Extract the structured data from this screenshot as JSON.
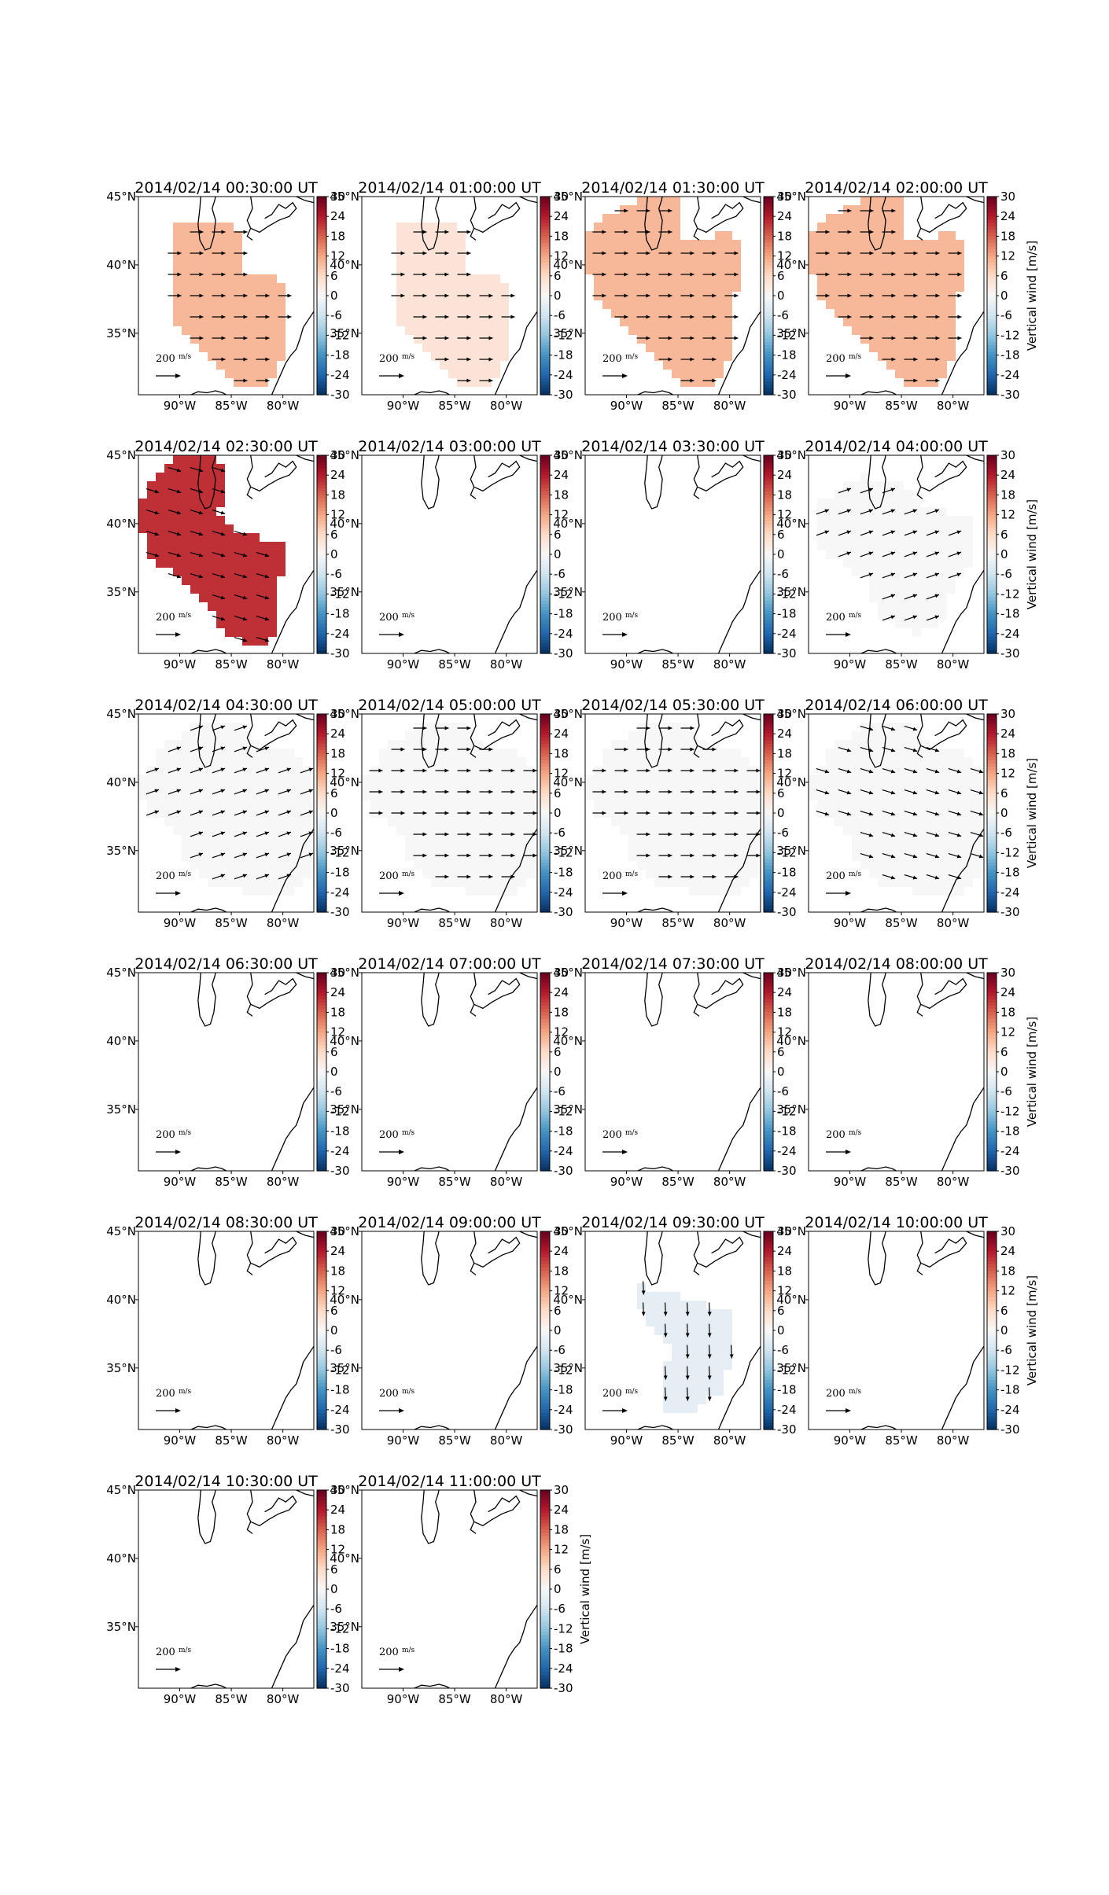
{
  "figure": {
    "colorbar_label": "Vertical wind [m/s]",
    "colorbar_ticks": [
      30,
      24,
      18,
      12,
      6,
      0,
      -6,
      -12,
      -18,
      -24,
      -30
    ],
    "colormap": [
      "#67001f",
      "#b2182b",
      "#d6604d",
      "#f4a582",
      "#fddbc7",
      "#f7f7f7",
      "#d1e5f0",
      "#92c5de",
      "#4393c3",
      "#2166ac",
      "#053061"
    ],
    "vmin": -30,
    "vmax": 30,
    "lat_ticks": [
      "45°N",
      "40°N",
      "35°N"
    ],
    "lon_ticks": [
      "90°W",
      "85°W",
      "80°W"
    ],
    "quiver_key": "200",
    "quiver_key_unit_num": "m",
    "quiver_key_unit_den": "s"
  },
  "chart_data": {
    "type": "heatmap",
    "panels": [
      {
        "title": "2014/02/14 00:30:00 UT",
        "vertical_wind": 10,
        "arrows": "east",
        "region": "A"
      },
      {
        "title": "2014/02/14 01:00:00 UT",
        "vertical_wind": 4,
        "arrows": "east",
        "region": "A"
      },
      {
        "title": "2014/02/14 01:30:00 UT",
        "vertical_wind": 10,
        "arrows": "east",
        "region": "B"
      },
      {
        "title": "2014/02/14 02:00:00 UT",
        "vertical_wind": 10,
        "arrows": "east",
        "region": "B"
      },
      {
        "title": "2014/02/14 02:30:00 UT",
        "vertical_wind": 22,
        "arrows": "southeast",
        "region": "C"
      },
      {
        "title": "2014/02/14 03:00:00 UT",
        "vertical_wind": null,
        "arrows": "none",
        "region": "none"
      },
      {
        "title": "2014/02/14 03:30:00 UT",
        "vertical_wind": null,
        "arrows": "none",
        "region": "none"
      },
      {
        "title": "2014/02/14 04:00:00 UT",
        "vertical_wind": 0,
        "arrows": "northeast",
        "region": "D"
      },
      {
        "title": "2014/02/14 04:30:00 UT",
        "vertical_wind": 0,
        "arrows": "northeast",
        "region": "E"
      },
      {
        "title": "2014/02/14 05:00:00 UT",
        "vertical_wind": 0,
        "arrows": "east",
        "region": "E"
      },
      {
        "title": "2014/02/14 05:30:00 UT",
        "vertical_wind": 0,
        "arrows": "east",
        "region": "E"
      },
      {
        "title": "2014/02/14 06:00:00 UT",
        "vertical_wind": 0,
        "arrows": "southeast",
        "region": "E"
      },
      {
        "title": "2014/02/14 06:30:00 UT",
        "vertical_wind": null,
        "arrows": "none",
        "region": "none"
      },
      {
        "title": "2014/02/14 07:00:00 UT",
        "vertical_wind": null,
        "arrows": "none",
        "region": "none"
      },
      {
        "title": "2014/02/14 07:30:00 UT",
        "vertical_wind": null,
        "arrows": "none",
        "region": "none"
      },
      {
        "title": "2014/02/14 08:00:00 UT",
        "vertical_wind": null,
        "arrows": "none",
        "region": "none"
      },
      {
        "title": "2014/02/14 08:30:00 UT",
        "vertical_wind": null,
        "arrows": "none",
        "region": "none"
      },
      {
        "title": "2014/02/14 09:00:00 UT",
        "vertical_wind": null,
        "arrows": "none",
        "region": "none"
      },
      {
        "title": "2014/02/14 09:30:00 UT",
        "vertical_wind": -3,
        "arrows": "south",
        "region": "F"
      },
      {
        "title": "2014/02/14 10:00:00 UT",
        "vertical_wind": null,
        "arrows": "none",
        "region": "none"
      },
      {
        "title": "2014/02/14 10:30:00 UT",
        "vertical_wind": null,
        "arrows": "none",
        "region": "none"
      },
      {
        "title": "2014/02/14 11:00:00 UT",
        "vertical_wind": null,
        "arrows": "none",
        "region": "none"
      }
    ]
  }
}
